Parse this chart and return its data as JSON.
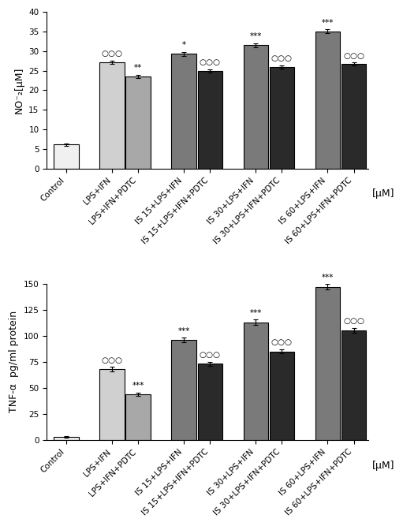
{
  "panel_B": {
    "ylabel": "NO⁻₂[μM]",
    "xlabel": "[μM]",
    "ylim": [
      0,
      40
    ],
    "yticks": [
      0,
      5,
      10,
      15,
      20,
      25,
      30,
      35,
      40
    ],
    "categories": [
      "Control",
      "LPS+IFN",
      "LPS+IFN+PDTC",
      "IS 15+LPS+IFN",
      "IS 15+LPS+IFN+PDTC",
      "IS 30+LPS+IFN",
      "IS 30+LPS+IFN+PDTC",
      "IS 60+LPS+IFN",
      "IS 60+LPS+IFN+PDTC"
    ],
    "values": [
      6.1,
      27.2,
      23.5,
      29.3,
      25.0,
      31.5,
      26.0,
      35.0,
      26.7
    ],
    "errors": [
      0.3,
      0.4,
      0.4,
      0.5,
      0.4,
      0.5,
      0.4,
      0.5,
      0.4
    ],
    "colors": [
      "#f0f0f0",
      "#d0d0d0",
      "#a8a8a8",
      "#7a7a7a",
      "#2a2a2a",
      "#7a7a7a",
      "#2a2a2a",
      "#7a7a7a",
      "#2a2a2a"
    ],
    "significance_top": [
      "",
      "○○○",
      "**",
      "*",
      "○○○",
      "***",
      "○○○",
      "***",
      "○○○"
    ]
  },
  "panel_C": {
    "ylabel": "TNF-α  pg/ml protein",
    "xlabel": "[μM]",
    "ylim": [
      0,
      150
    ],
    "yticks": [
      0,
      25,
      50,
      75,
      100,
      125,
      150
    ],
    "categories": [
      "Control",
      "LPS+IFN",
      "LPS+IFN+PDTC",
      "IS 15+LPS+IFN",
      "IS 15+LPS+IFN+PDTC",
      "IS 30+LPS+IFN",
      "IS 30+LPS+IFN+PDTC",
      "IS 60+LPS+IFN",
      "IS 60+LPS+IFN+PDTC"
    ],
    "values": [
      3.0,
      68.0,
      44.0,
      96.0,
      73.0,
      113.0,
      85.0,
      147.0,
      105.0
    ],
    "errors": [
      0.5,
      2.0,
      1.5,
      2.0,
      2.0,
      2.5,
      2.0,
      2.5,
      2.5
    ],
    "colors": [
      "#f0f0f0",
      "#d0d0d0",
      "#a8a8a8",
      "#7a7a7a",
      "#2a2a2a",
      "#7a7a7a",
      "#2a2a2a",
      "#7a7a7a",
      "#2a2a2a"
    ],
    "significance_top": [
      "",
      "○○○",
      "***",
      "***",
      "○○○",
      "***",
      "○○○",
      "***",
      "○○○"
    ]
  },
  "edgecolor": "#000000",
  "tick_fontsize": 7.5,
  "label_fontsize": 9,
  "sig_fontsize": 7.5
}
